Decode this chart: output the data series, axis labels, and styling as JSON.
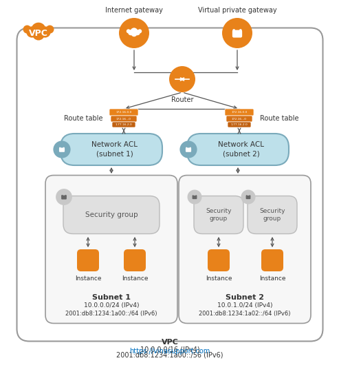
{
  "bg_color": "#ffffff",
  "orange": "#E8821A",
  "light_blue": "#BDE0EA",
  "route_table_colors": [
    "#E8821A",
    "#D07515",
    "#C06810"
  ],
  "subnet_fill": "#f7f7f7",
  "subnet_border": "#999999",
  "sg_fill": "#e0e0e0",
  "sg_border": "#bbbbbb",
  "acl_fill": "#BDE0EA",
  "acl_border": "#7AAABB",
  "vpc_border": "#999999",
  "arrow_color": "#555555",
  "text_color": "#333333",
  "footer_color": "#0070C0",
  "ig_label": "Internet gateway",
  "vpg_label": "Virtual private gateway",
  "router_label": "Router",
  "route_table_label": "Route table",
  "acl1_label": "Network ACL\n(subnet 1)",
  "acl2_label": "Network ACL\n(subnet 2)",
  "sg1_label": "Security group",
  "sg2a_label": "Security\ngroup",
  "sg2b_label": "Security\ngroup",
  "inst_label": "Instance",
  "subnet1_title": "Subnet 1",
  "subnet1_ipv4": "10.0.0.0/24 (IPv4)",
  "subnet1_ipv6": "2001:db8:1234:1a00::/64 (IPv6)",
  "subnet2_title": "Subnet 2",
  "subnet2_ipv4": "10.0.1.0/24 (IPv4)",
  "subnet2_ipv6": "2001:db8:1234:1a02::/64 (IPv6)",
  "vpc_label": "VPC",
  "vpc_ipv4": "10.0.0.0/16 (IPv4)",
  "vpc_ipv6": "2001:db8:1234:1a00::/56 (IPv6)",
  "vpc_badge": "VPC",
  "footer": "https://vinasupport.com"
}
